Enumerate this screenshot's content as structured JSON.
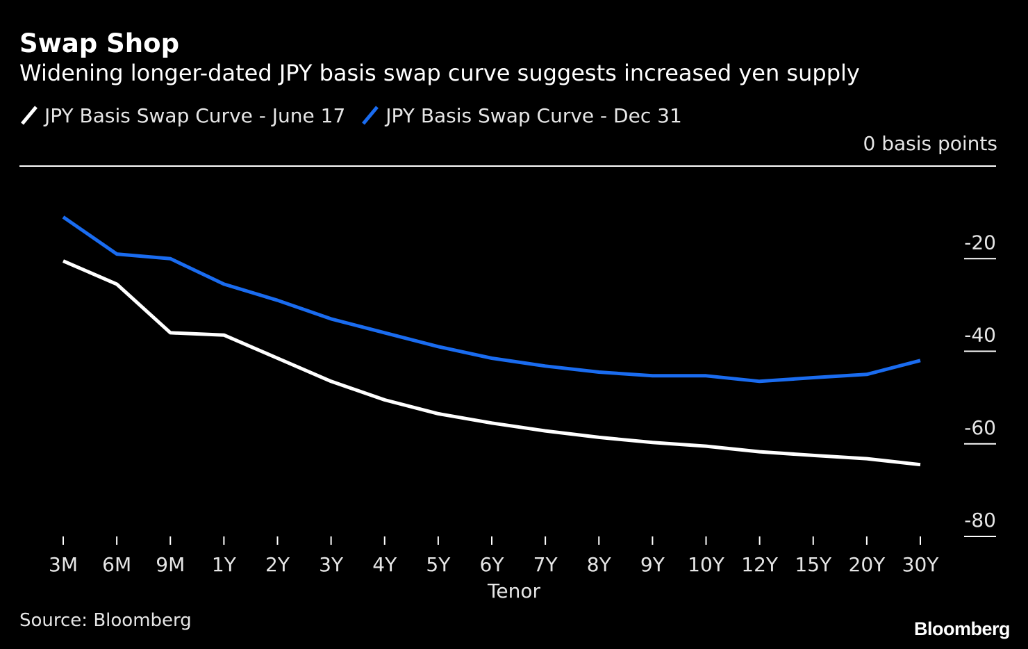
{
  "header": {
    "title": "Swap Shop",
    "subtitle": "Widening longer-dated JPY basis swap curve suggests increased yen supply"
  },
  "footer": {
    "source": "Source: Bloomberg",
    "brand": "Bloomberg"
  },
  "colors": {
    "background": "#000000",
    "series_june": "#ffffff",
    "series_dec": "#1a6cf0",
    "axis": "#ffffff"
  },
  "chart_data": {
    "type": "line",
    "title": "Swap Shop",
    "subtitle": "Widening longer-dated JPY basis swap curve suggests increased yen supply",
    "xlabel": "Tenor",
    "ylabel": "",
    "unit_label": "0 basis points",
    "categories": [
      "3M",
      "6M",
      "9M",
      "1Y",
      "2Y",
      "3Y",
      "4Y",
      "5Y",
      "6Y",
      "7Y",
      "8Y",
      "9Y",
      "10Y",
      "12Y",
      "15Y",
      "20Y",
      "30Y"
    ],
    "series": [
      {
        "name": "JPY Basis Swap Curve - June 17",
        "values": [
          -20.5,
          -25.5,
          -36,
          -36.5,
          -41.5,
          -46.5,
          -50.5,
          -53.5,
          -55.5,
          -57.2,
          -58.6,
          -59.7,
          -60.5,
          -61.7,
          -62.5,
          -63.2,
          -64.5
        ]
      },
      {
        "name": "JPY Basis Swap Curve - Dec 31",
        "values": [
          -11,
          -19,
          -20,
          -25.5,
          -29,
          -33,
          -36,
          -39,
          -41.5,
          -43.2,
          -44.5,
          -45.3,
          -45.3,
          -46.5,
          -45.7,
          -45,
          -42
        ]
      }
    ],
    "y_ticks": [
      {
        "value": -20,
        "label": "-20"
      },
      {
        "value": -40,
        "label": "-40"
      },
      {
        "value": -60,
        "label": "-60"
      },
      {
        "value": -80,
        "label": "-80"
      }
    ],
    "ylim": [
      -80,
      0
    ],
    "grid": false,
    "legend_position": "top-left"
  }
}
